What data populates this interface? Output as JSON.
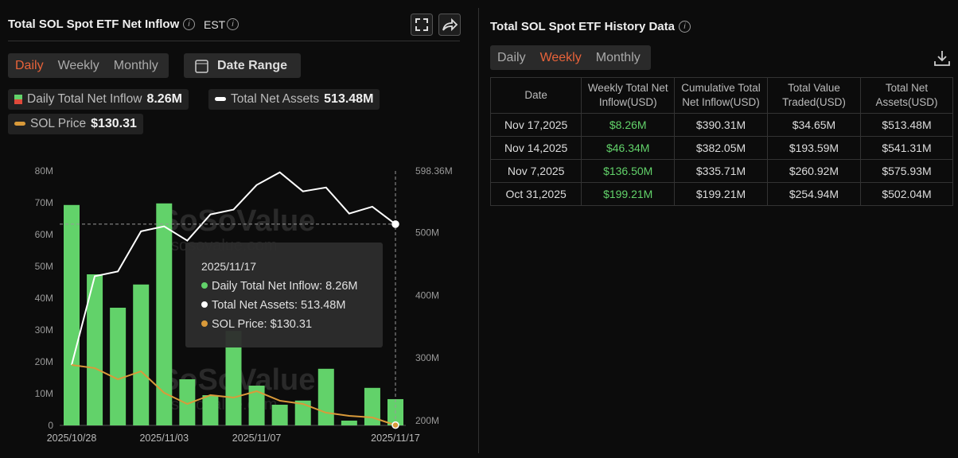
{
  "left_panel": {
    "title": "Total SOL Spot ETF Net Inflow",
    "timezone": "EST",
    "tabs": [
      "Daily",
      "Weekly",
      "Monthly"
    ],
    "active_tab": 0,
    "date_range": "Date Range"
  },
  "chart_data": {
    "type": "combo",
    "categories": [
      "2025/10/28",
      null,
      null,
      null,
      "2025/11/03",
      null,
      null,
      null,
      "2025/11/07",
      null,
      null,
      null,
      null,
      null,
      "2025/11/17"
    ],
    "series": [
      {
        "name": "Daily Total Net Inflow",
        "type": "bar",
        "axis": "y",
        "color": "#62d26a",
        "legend_value": "8.26M",
        "values": [
          69.3,
          47.5,
          37,
          44.3,
          69.8,
          14.5,
          9.5,
          29.7,
          12.5,
          6.5,
          7.8,
          17.8,
          1.5,
          11.8,
          8.26
        ]
      },
      {
        "name": "Total Net Assets",
        "type": "line",
        "axis": "y2",
        "color": "#ffffff",
        "legend_value": "513.48M",
        "values": [
          288.6,
          430.4,
          438,
          502.04,
          510,
          487.3,
          529,
          536.7,
          575.93,
          596.2,
          565.8,
          572,
          530.4,
          541.31,
          513.48
        ]
      },
      {
        "name": "SOL Price",
        "type": "line",
        "axis": "y3",
        "color": "#d99a3a",
        "legend_value": "$130.31",
        "values": [
          194.1,
          190.8,
          178.9,
          187.4,
          164.6,
          152.8,
          162.1,
          159.5,
          166.3,
          156.2,
          152.8,
          143.5,
          140.1,
          138.4,
          130.31
        ]
      }
    ],
    "ylim": [
      0,
      80
    ],
    "yticks": [
      0,
      {
        "value": 10,
        "label": "10M"
      },
      {
        "value": 20,
        "label": "20M"
      },
      {
        "value": 30,
        "label": "30M"
      },
      {
        "value": 40,
        "label": "40M"
      },
      {
        "value": 50,
        "label": "50M"
      },
      {
        "value": 60,
        "label": "60M"
      },
      {
        "value": 70,
        "label": "70M"
      },
      {
        "value": 80,
        "label": "80M"
      }
    ],
    "y2lim": [
      192.4,
      598.36
    ],
    "y2ticks": [
      {
        "value": 200,
        "label": "200M"
      },
      {
        "value": 300,
        "label": "300M"
      },
      {
        "value": 400,
        "label": "400M"
      },
      {
        "value": 500,
        "label": "500M"
      },
      {
        "value": 598.36,
        "label": "598.36M"
      }
    ],
    "y3lim": [
      130,
      400
    ],
    "grid": false
  },
  "tooltip": {
    "date": "2025/11/17",
    "items": [
      "Daily Total Net Inflow: 8.26M",
      "Total Net Assets: 513.48M",
      "SOL Price: $130.31"
    ]
  },
  "watermark": {
    "brand": "SoSoValue",
    "site": "sosovalue.com"
  },
  "right_panel": {
    "title": "Total SOL Spot ETF History Data",
    "tabs": [
      "Daily",
      "Weekly",
      "Monthly"
    ],
    "active_tab": 1,
    "table": {
      "columns": [
        "Date",
        "Weekly Total Net Inflow(USD)",
        "Cumulative Total Net Inflow(USD)",
        "Total Value Traded(USD)",
        "Total Net Assets(USD)"
      ],
      "rows": [
        [
          "Nov 17,2025",
          "$8.26M",
          "$390.31M",
          "$34.65M",
          "$513.48M"
        ],
        [
          "Nov 14,2025",
          "$46.34M",
          "$382.05M",
          "$193.59M",
          "$541.31M"
        ],
        [
          "Nov 7,2025",
          "$136.50M",
          "$335.71M",
          "$260.92M",
          "$575.93M"
        ],
        [
          "Oct 31,2025",
          "$199.21M",
          "$199.21M",
          "$254.94M",
          "$502.04M"
        ]
      ]
    }
  }
}
